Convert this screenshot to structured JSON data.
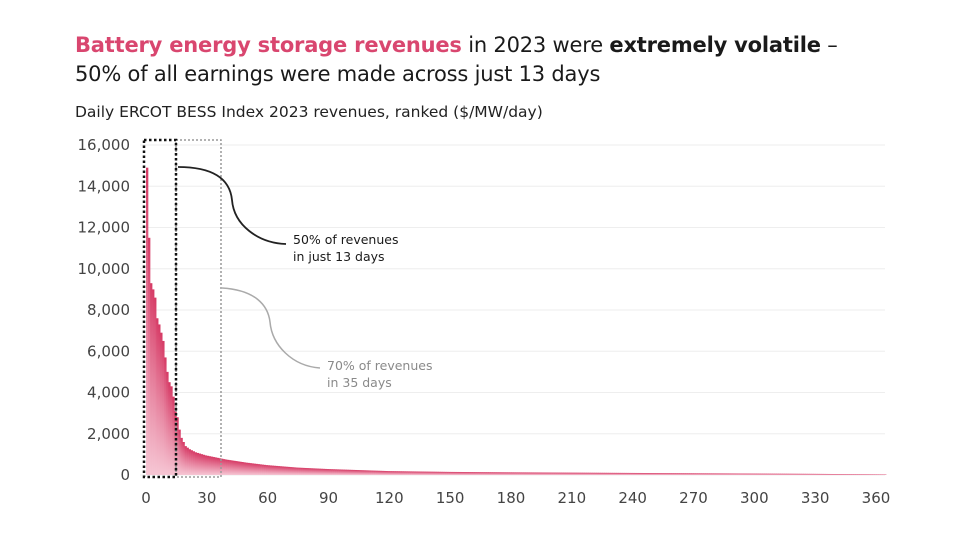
{
  "title": {
    "part1_highlight": "Battery energy storage revenues",
    "part2": " in 2023 were ",
    "part3_bold": "extremely volatile",
    "part4": " –",
    "line2": "50% of all earnings were made across just 13 days"
  },
  "colors": {
    "accent": "#d9466f",
    "bar_top": "#d63a65",
    "bar_bottom": "#f6c6d4"
  },
  "chart_data": {
    "type": "bar",
    "title": "Daily ERCOT BESS Index 2023 revenues, ranked ($/MW/day)",
    "xlabel": "",
    "ylabel": "",
    "xlim": [
      0,
      365
    ],
    "ylim": [
      0,
      16000
    ],
    "grid": true,
    "x_ticks": [
      "0",
      "30",
      "60",
      "90",
      "120",
      "150",
      "180",
      "210",
      "240",
      "270",
      "300",
      "330",
      "360"
    ],
    "y_ticks": [
      "0",
      "2,000",
      "4,000",
      "6,000",
      "8,000",
      "10,000",
      "12,000",
      "14,000",
      "16,000"
    ],
    "ranked_values_sampled": {
      "rank": [
        1,
        2,
        3,
        4,
        5,
        6,
        7,
        8,
        9,
        10,
        11,
        12,
        13,
        14,
        15,
        16,
        17,
        18,
        19,
        20,
        22,
        25,
        30,
        35,
        40,
        50,
        60,
        75,
        90,
        105,
        120,
        150,
        180,
        210,
        240,
        270,
        300,
        330,
        365
      ],
      "value": [
        14900,
        11500,
        9300,
        9000,
        8600,
        7600,
        7300,
        6900,
        6500,
        5700,
        5000,
        4500,
        4300,
        3800,
        3100,
        2800,
        2200,
        1800,
        1600,
        1400,
        1250,
        1100,
        950,
        850,
        750,
        600,
        480,
        360,
        290,
        240,
        190,
        150,
        130,
        115,
        100,
        85,
        70,
        55,
        30
      ]
    },
    "annotations": [
      {
        "range_days": 13,
        "line1": "50% of revenues",
        "line2": "in just 13 days",
        "style": "black dotted box"
      },
      {
        "range_days": 35,
        "line1": "70% of revenues",
        "line2": "in 35 days",
        "style": "gray dotted box"
      }
    ]
  }
}
